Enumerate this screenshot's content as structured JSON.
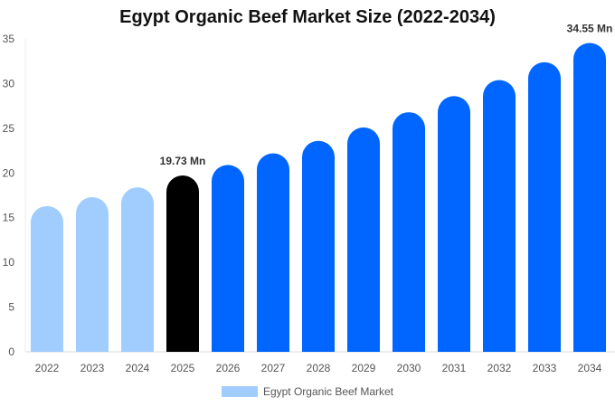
{
  "chart_data": {
    "type": "bar",
    "title": "Egypt Organic Beef Market Size (2022-2034)",
    "xlabel": "",
    "ylabel": "",
    "categories": [
      "2022",
      "2023",
      "2024",
      "2025",
      "2026",
      "2027",
      "2028",
      "2029",
      "2030",
      "2031",
      "2032",
      "2033",
      "2034"
    ],
    "series": [
      {
        "name": "Egypt Organic Beef Market",
        "values": [
          16.3,
          17.3,
          18.4,
          19.73,
          20.9,
          22.2,
          23.6,
          25.1,
          26.8,
          28.6,
          30.4,
          32.4,
          34.55
        ]
      }
    ],
    "ylim": [
      0,
      35
    ],
    "yticks": [
      0,
      5,
      10,
      15,
      20,
      25,
      30,
      35
    ],
    "data_labels": [
      {
        "category": "2025",
        "text": "19.73 Mn"
      },
      {
        "category": "2034",
        "text": "34.55 Mn"
      }
    ],
    "colors": {
      "historical": "#a0cdfd",
      "current": "#000000",
      "forecast": "#0066ff"
    },
    "grid": false,
    "legend_position": "bottom"
  }
}
